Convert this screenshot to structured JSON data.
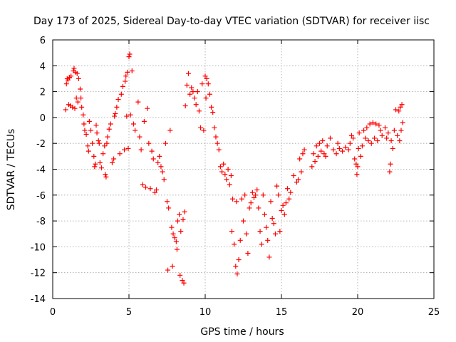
{
  "chart_data": {
    "type": "scatter",
    "title": "Day 173 of 2025, Sidereal Day-to-day VTEC variation (SDTVAR) for receiver iisc",
    "xlabel": "GPS time / hours",
    "ylabel": "SDTVAR / TECUs",
    "xlim": [
      0,
      25
    ],
    "ylim": [
      -14,
      6
    ],
    "xticks": [
      "0",
      "5",
      "10",
      "15",
      "20",
      "25"
    ],
    "yticks": [
      "-14",
      "-12",
      "-10",
      "-8",
      "-6",
      "-4",
      "-2",
      "0",
      "2",
      "4",
      "6"
    ],
    "grid": true,
    "marker": "plus",
    "color": "#ff0000",
    "series": [
      {
        "points": [
          [
            0.85,
            0.6
          ],
          [
            0.9,
            2.6
          ],
          [
            0.95,
            3.0
          ],
          [
            1.0,
            2.9
          ],
          [
            1.05,
            1.0
          ],
          [
            1.1,
            3.1
          ],
          [
            1.15,
            0.9
          ],
          [
            1.2,
            3.2
          ],
          [
            1.3,
            0.8
          ],
          [
            1.35,
            3.6
          ],
          [
            1.4,
            3.8
          ],
          [
            1.45,
            0.7
          ],
          [
            1.5,
            3.5
          ],
          [
            1.55,
            1.5
          ],
          [
            1.6,
            3.4
          ],
          [
            1.65,
            1.2
          ],
          [
            1.7,
            3.0
          ],
          [
            1.8,
            2.2
          ],
          [
            1.85,
            1.5
          ],
          [
            1.9,
            0.8
          ],
          [
            2.0,
            0.2
          ],
          [
            2.05,
            -0.5
          ],
          [
            2.1,
            -1.0
          ],
          [
            2.2,
            -1.3
          ],
          [
            2.3,
            -2.2
          ],
          [
            2.35,
            -2.6
          ],
          [
            2.4,
            -0.3
          ],
          [
            2.5,
            -1.0
          ],
          [
            2.6,
            -2.0
          ],
          [
            2.7,
            -3.0
          ],
          [
            2.75,
            -3.8
          ],
          [
            2.8,
            -3.6
          ],
          [
            2.85,
            -0.6
          ],
          [
            2.9,
            -1.2
          ],
          [
            3.0,
            -1.8
          ],
          [
            3.05,
            -2.0
          ],
          [
            3.1,
            -3.5
          ],
          [
            3.2,
            -3.9
          ],
          [
            3.3,
            -2.8
          ],
          [
            3.4,
            -2.2
          ],
          [
            3.45,
            -4.4
          ],
          [
            3.5,
            -4.6
          ],
          [
            3.55,
            -2.0
          ],
          [
            3.6,
            -1.5
          ],
          [
            3.7,
            -0.9
          ],
          [
            3.8,
            -0.5
          ],
          [
            3.9,
            -3.5
          ],
          [
            4.0,
            -3.2
          ],
          [
            4.05,
            0.1
          ],
          [
            4.1,
            0.3
          ],
          [
            4.2,
            0.8
          ],
          [
            4.3,
            1.4
          ],
          [
            4.4,
            -2.8
          ],
          [
            4.5,
            1.8
          ],
          [
            4.6,
            2.4
          ],
          [
            4.7,
            -2.5
          ],
          [
            4.75,
            2.8
          ],
          [
            4.8,
            3.2
          ],
          [
            4.85,
            0.1
          ],
          [
            4.9,
            3.5
          ],
          [
            4.95,
            -2.4
          ],
          [
            5.0,
            4.7
          ],
          [
            5.05,
            4.9
          ],
          [
            5.1,
            0.2
          ],
          [
            5.2,
            3.6
          ],
          [
            5.3,
            -0.5
          ],
          [
            5.4,
            -1.0
          ],
          [
            5.6,
            1.2
          ],
          [
            5.7,
            -1.5
          ],
          [
            5.8,
            -2.5
          ],
          [
            5.9,
            -5.2
          ],
          [
            6.0,
            -0.3
          ],
          [
            6.1,
            -5.4
          ],
          [
            6.2,
            0.7
          ],
          [
            6.3,
            -2.0
          ],
          [
            6.4,
            -5.5
          ],
          [
            6.5,
            -2.6
          ],
          [
            6.6,
            -3.2
          ],
          [
            6.7,
            -5.8
          ],
          [
            6.8,
            -5.6
          ],
          [
            6.9,
            -3.5
          ],
          [
            7.0,
            -3.0
          ],
          [
            7.1,
            -3.8
          ],
          [
            7.2,
            -4.2
          ],
          [
            7.3,
            -4.8
          ],
          [
            7.4,
            -2.0
          ],
          [
            7.5,
            -6.5
          ],
          [
            7.55,
            -11.8
          ],
          [
            7.6,
            -7.0
          ],
          [
            7.7,
            -1.0
          ],
          [
            7.8,
            -8.5
          ],
          [
            7.85,
            -11.5
          ],
          [
            7.9,
            -9.0
          ],
          [
            8.0,
            -9.3
          ],
          [
            8.1,
            -9.6
          ],
          [
            8.15,
            -10.2
          ],
          [
            8.2,
            -8.0
          ],
          [
            8.3,
            -7.5
          ],
          [
            8.35,
            -12.2
          ],
          [
            8.4,
            -8.8
          ],
          [
            8.5,
            -12.6
          ],
          [
            8.55,
            -7.9
          ],
          [
            8.6,
            -12.8
          ],
          [
            8.65,
            -7.3
          ],
          [
            8.7,
            0.9
          ],
          [
            8.8,
            2.5
          ],
          [
            8.9,
            3.4
          ],
          [
            9.0,
            1.8
          ],
          [
            9.1,
            2.3
          ],
          [
            9.2,
            2.0
          ],
          [
            9.3,
            1.5
          ],
          [
            9.4,
            1.0
          ],
          [
            9.5,
            2.0
          ],
          [
            9.6,
            0.5
          ],
          [
            9.7,
            -0.8
          ],
          [
            9.8,
            2.6
          ],
          [
            9.9,
            -1.0
          ],
          [
            10.0,
            3.2
          ],
          [
            10.05,
            1.5
          ],
          [
            10.1,
            3.0
          ],
          [
            10.2,
            2.6
          ],
          [
            10.3,
            1.8
          ],
          [
            10.4,
            0.8
          ],
          [
            10.5,
            0.4
          ],
          [
            10.6,
            -0.8
          ],
          [
            10.7,
            -1.5
          ],
          [
            10.8,
            -2.0
          ],
          [
            10.9,
            -2.5
          ],
          [
            11.0,
            -3.8
          ],
          [
            11.1,
            -4.2
          ],
          [
            11.2,
            -3.6
          ],
          [
            11.3,
            -4.4
          ],
          [
            11.4,
            -4.8
          ],
          [
            11.5,
            -4.0
          ],
          [
            11.6,
            -5.2
          ],
          [
            11.7,
            -4.5
          ],
          [
            11.75,
            -8.8
          ],
          [
            11.8,
            -6.3
          ],
          [
            11.9,
            -9.8
          ],
          [
            12.0,
            -11.5
          ],
          [
            12.05,
            -6.5
          ],
          [
            12.1,
            -12.1
          ],
          [
            12.2,
            -11.0
          ],
          [
            12.3,
            -9.5
          ],
          [
            12.4,
            -6.3
          ],
          [
            12.5,
            -8.0
          ],
          [
            12.6,
            -6.0
          ],
          [
            12.7,
            -9.0
          ],
          [
            12.8,
            -10.5
          ],
          [
            12.9,
            -7.0
          ],
          [
            13.0,
            -6.6
          ],
          [
            13.1,
            -5.8
          ],
          [
            13.2,
            -6.2
          ],
          [
            13.3,
            -6.0
          ],
          [
            13.4,
            -5.6
          ],
          [
            13.5,
            -7.0
          ],
          [
            13.6,
            -8.8
          ],
          [
            13.7,
            -9.8
          ],
          [
            13.8,
            -6.0
          ],
          [
            13.9,
            -7.5
          ],
          [
            14.0,
            -8.5
          ],
          [
            14.1,
            -9.5
          ],
          [
            14.2,
            -10.8
          ],
          [
            14.3,
            -6.5
          ],
          [
            14.4,
            -7.8
          ],
          [
            14.5,
            -8.2
          ],
          [
            14.6,
            -9.0
          ],
          [
            14.7,
            -5.3
          ],
          [
            14.8,
            -6.0
          ],
          [
            14.9,
            -8.8
          ],
          [
            15.0,
            -7.2
          ],
          [
            15.1,
            -6.8
          ],
          [
            15.2,
            -7.5
          ],
          [
            15.3,
            -6.6
          ],
          [
            15.4,
            -5.5
          ],
          [
            15.5,
            -6.3
          ],
          [
            15.6,
            -5.8
          ],
          [
            15.8,
            -4.5
          ],
          [
            16.0,
            -5.0
          ],
          [
            16.1,
            -4.8
          ],
          [
            16.2,
            -3.2
          ],
          [
            16.3,
            -4.2
          ],
          [
            16.4,
            -2.8
          ],
          [
            16.5,
            -2.5
          ],
          [
            17.0,
            -3.8
          ],
          [
            17.1,
            -2.8
          ],
          [
            17.2,
            -3.4
          ],
          [
            17.3,
            -2.2
          ],
          [
            17.4,
            -3.0
          ],
          [
            17.5,
            -2.0
          ],
          [
            17.6,
            -2.6
          ],
          [
            17.7,
            -1.8
          ],
          [
            17.8,
            -2.8
          ],
          [
            17.9,
            -3.0
          ],
          [
            18.0,
            -2.2
          ],
          [
            18.2,
            -1.6
          ],
          [
            18.4,
            -2.5
          ],
          [
            18.6,
            -2.8
          ],
          [
            18.7,
            -2.0
          ],
          [
            18.8,
            -2.4
          ],
          [
            19.0,
            -2.6
          ],
          [
            19.2,
            -2.3
          ],
          [
            19.4,
            -2.5
          ],
          [
            19.5,
            -2.0
          ],
          [
            19.6,
            -1.4
          ],
          [
            19.7,
            -1.6
          ],
          [
            19.8,
            -3.2
          ],
          [
            19.9,
            -3.6
          ],
          [
            19.95,
            -4.4
          ],
          [
            20.0,
            -3.8
          ],
          [
            20.05,
            -2.4
          ],
          [
            20.1,
            -1.2
          ],
          [
            20.2,
            -3.0
          ],
          [
            20.3,
            -2.2
          ],
          [
            20.4,
            -1.0
          ],
          [
            20.5,
            -1.6
          ],
          [
            20.6,
            -0.8
          ],
          [
            20.7,
            -1.8
          ],
          [
            20.8,
            -0.5
          ],
          [
            20.9,
            -2.0
          ],
          [
            21.0,
            -0.4
          ],
          [
            21.1,
            -1.6
          ],
          [
            21.2,
            -0.5
          ],
          [
            21.3,
            -1.8
          ],
          [
            21.4,
            -0.6
          ],
          [
            21.5,
            -1.0
          ],
          [
            21.6,
            -1.4
          ],
          [
            21.8,
            -0.8
          ],
          [
            21.9,
            -1.6
          ],
          [
            22.0,
            -1.2
          ],
          [
            22.1,
            -4.2
          ],
          [
            22.15,
            -3.6
          ],
          [
            22.2,
            -1.8
          ],
          [
            22.3,
            -2.4
          ],
          [
            22.4,
            -1.0
          ],
          [
            22.5,
            0.6
          ],
          [
            22.6,
            -1.4
          ],
          [
            22.7,
            0.5
          ],
          [
            22.75,
            -1.8
          ],
          [
            22.8,
            0.8
          ],
          [
            22.85,
            -1.0
          ],
          [
            22.9,
            1.0
          ],
          [
            22.95,
            -0.4
          ]
        ]
      }
    ]
  }
}
